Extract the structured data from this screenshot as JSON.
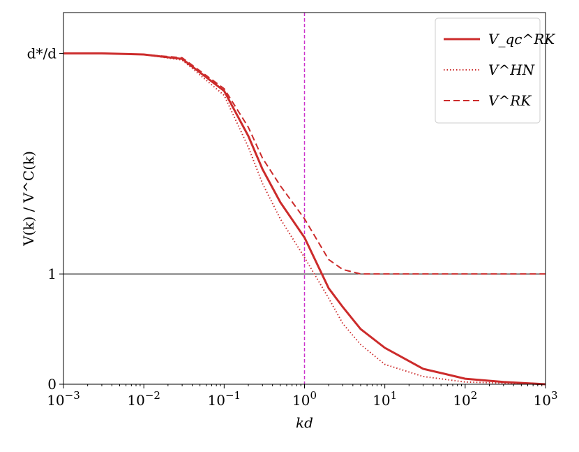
{
  "chart_data": {
    "type": "line",
    "xlabel": "kd",
    "ylabel": "V(k) / V^C(k)",
    "xscale": "log",
    "x": [
      0.001,
      0.003,
      0.01,
      0.03,
      0.1,
      0.2,
      0.3,
      0.5,
      1,
      2,
      3,
      5,
      10,
      30,
      100,
      300,
      1000
    ],
    "series": [
      {
        "name": "V_qc^RK",
        "color": "#cc2b2b",
        "style": "solid",
        "values": [
          3.0,
          3.0,
          2.99,
          2.95,
          2.66,
          2.25,
          1.95,
          1.65,
          1.33,
          0.87,
          0.7,
          0.5,
          0.33,
          0.14,
          0.05,
          0.02,
          0.0
        ]
      },
      {
        "name": "V^HN",
        "color": "#cc2b2b",
        "style": "dotted",
        "values": [
          3.0,
          3.0,
          2.99,
          2.94,
          2.62,
          2.15,
          1.82,
          1.5,
          1.15,
          0.78,
          0.55,
          0.36,
          0.18,
          0.07,
          0.02,
          0.01,
          0.0
        ]
      },
      {
        "name": "V^RK",
        "color": "#cc2b2b",
        "style": "dashed",
        "values": [
          3.0,
          3.0,
          2.99,
          2.96,
          2.68,
          2.33,
          2.05,
          1.8,
          1.5,
          1.13,
          1.04,
          1.0,
          1.0,
          1.0,
          1.0,
          1.0,
          1.0
        ]
      }
    ],
    "xlim": [
      0.001,
      1000
    ],
    "xticks": [
      {
        "value": 0.001,
        "label": "10",
        "exp": "−3"
      },
      {
        "value": 0.01,
        "label": "10",
        "exp": "−2"
      },
      {
        "value": 0.1,
        "label": "10",
        "exp": "−1"
      },
      {
        "value": 1,
        "label": "10",
        "exp": "0"
      },
      {
        "value": 10,
        "label": "10",
        "exp": "1"
      },
      {
        "value": 100,
        "label": "10",
        "exp": "2"
      },
      {
        "value": 1000,
        "label": "10",
        "exp": "3"
      }
    ],
    "ylim": [
      0,
      3.37
    ],
    "yticks": [
      0,
      1,
      {
        "value": 3,
        "label": "d*/d"
      }
    ],
    "hline": {
      "y": 1,
      "color": "#000000"
    },
    "vline": {
      "x": 1,
      "color": "#cc33cc"
    },
    "legend": "upper right"
  }
}
